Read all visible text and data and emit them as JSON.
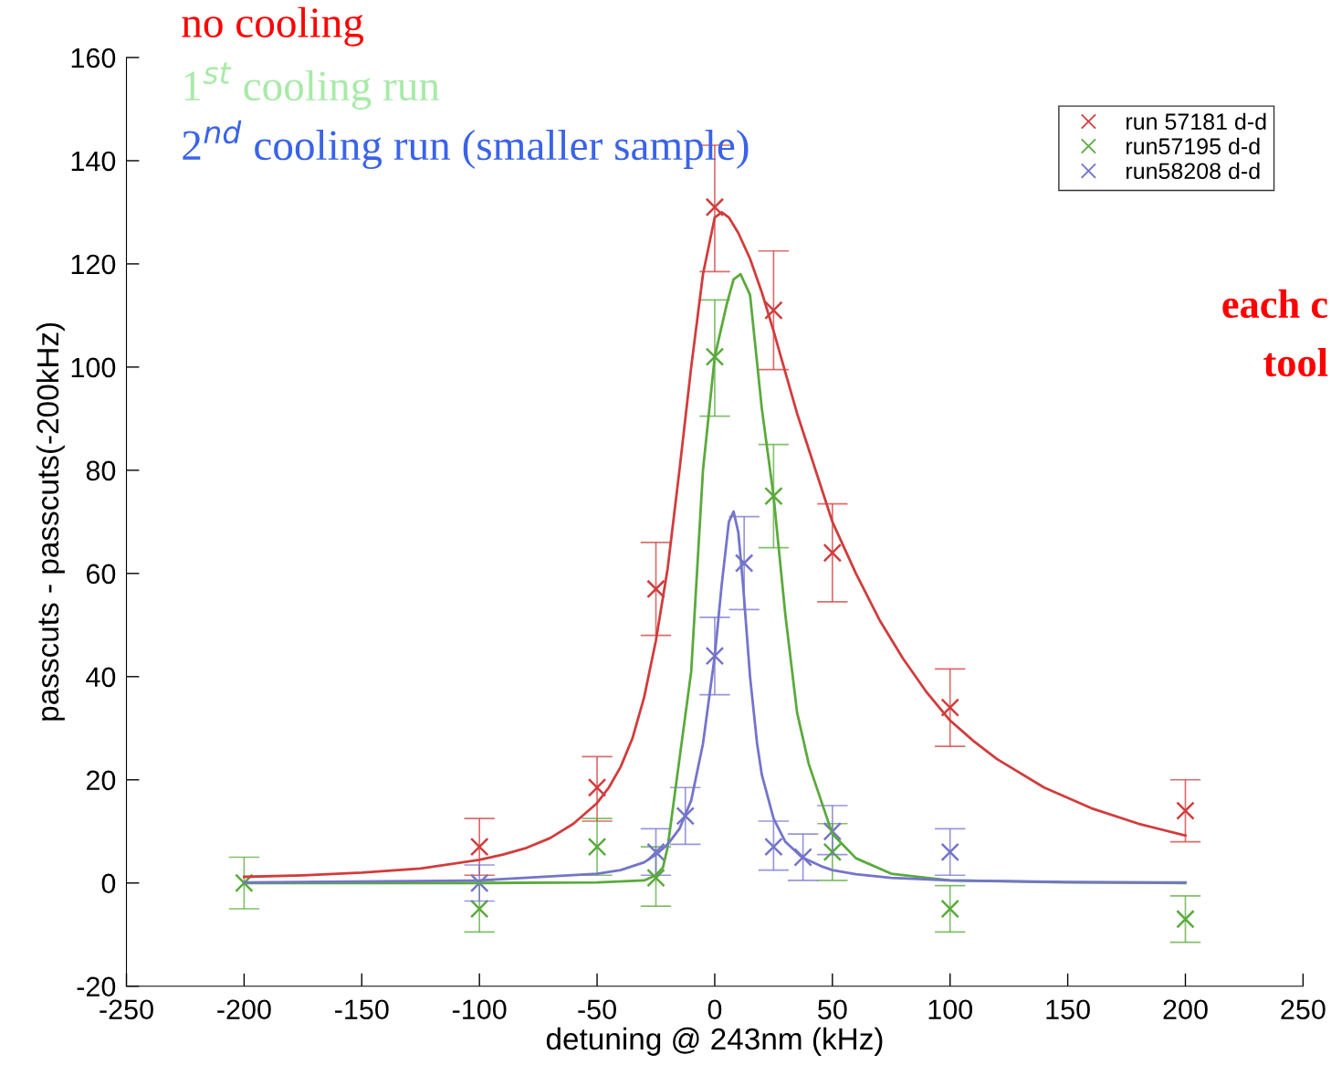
{
  "chart_data": {
    "type": "scatter",
    "xlabel": "detuning @ 243nm (kHz)",
    "ylabel": "passcuts - passcuts(-200kHz)",
    "xlim": [
      -250,
      250
    ],
    "xticks": [
      -250,
      -200,
      -150,
      -100,
      -50,
      0,
      50,
      100,
      150,
      200,
      250
    ],
    "ylim": [
      -20,
      160
    ],
    "yticks": [
      -20,
      0,
      20,
      40,
      60,
      80,
      100,
      120,
      140,
      160
    ],
    "grid": false,
    "legend": "top right",
    "marker": "cross",
    "annotations": [
      "no cooling",
      "1$^{st}$ cooling run",
      "2$^{nd}$ cooling run (smaller sample)",
      "each c",
      "tool"
    ],
    "series": [
      {
        "name": "run 57181 d-d",
        "color": "#d23c3c",
        "x": [
          -100,
          -50,
          -25,
          0,
          25,
          50,
          100,
          200
        ],
        "values": [
          7,
          18.5,
          57,
          131,
          111,
          64,
          34,
          14
        ],
        "errors": [
          [
            1.5,
            12.5
          ],
          [
            12,
            24.5
          ],
          [
            48,
            66
          ],
          [
            118.5,
            143
          ],
          [
            99.5,
            122.5
          ],
          [
            54.5,
            73.5
          ],
          [
            26.5,
            41.5
          ],
          [
            8,
            20
          ]
        ]
      },
      {
        "name": "run57195 d-d",
        "color": "#5aaa3c",
        "x": [
          -200,
          -100,
          -50,
          -25,
          0,
          25,
          50,
          100,
          200
        ],
        "values": [
          0,
          -5,
          7,
          1,
          102,
          75,
          6,
          -5,
          -7
        ],
        "errors": [
          [
            -5,
            5
          ],
          [
            -9.5,
            0.5
          ],
          [
            1.5,
            12.5
          ],
          [
            -4.5,
            7
          ],
          [
            90.5,
            113
          ],
          [
            65,
            85
          ],
          [
            0.5,
            11.5
          ],
          [
            -9.5,
            -0.5
          ],
          [
            -11.5,
            -2.5
          ]
        ]
      },
      {
        "name": "run58208 d-d",
        "color": "#7474cc",
        "x": [
          -100,
          -25,
          -12.5,
          0,
          12.5,
          25,
          37.5,
          50,
          100
        ],
        "values": [
          0,
          6,
          13,
          44,
          62,
          7,
          5,
          10,
          6
        ],
        "errors": [
          [
            -3.5,
            3.5
          ],
          [
            1.5,
            10.5
          ],
          [
            7.5,
            18.5
          ],
          [
            36.5,
            51.5
          ],
          [
            53,
            71
          ],
          [
            2.5,
            12
          ],
          [
            0.5,
            9.5
          ],
          [
            5.5,
            15
          ],
          [
            1.5,
            10.5
          ]
        ]
      },
      {
        "type": "line",
        "color": "#d23c3c",
        "marker": "none",
        "x": [
          -200,
          -175,
          -150,
          -125,
          -100,
          -90,
          -80,
          -70,
          -60,
          -50,
          -45,
          -40,
          -35,
          -30,
          -25,
          -20,
          -15,
          -10,
          -5,
          0,
          3,
          6,
          10,
          15,
          20,
          25,
          30,
          35,
          40,
          45,
          50,
          60,
          70,
          80,
          90,
          100,
          110,
          120,
          140,
          160,
          180,
          200
        ],
        "values": [
          1.2,
          1.5,
          2.0,
          2.8,
          4.5,
          5.5,
          6.8,
          8.7,
          11.5,
          15.5,
          18.5,
          22.5,
          28,
          36,
          47,
          61,
          80,
          100,
          118,
          129,
          130,
          129,
          126,
          121,
          114.5,
          107,
          99,
          91,
          84,
          77,
          70,
          60,
          51,
          43.5,
          37,
          31.5,
          27.5,
          24,
          18.5,
          14.5,
          11.5,
          9.2
        ]
      },
      {
        "type": "line",
        "color": "#5aaa3c",
        "marker": "none",
        "x": [
          -200,
          -100,
          -50,
          -30,
          -25,
          -22,
          -20,
          -15,
          -10,
          -5,
          0,
          5,
          8,
          11,
          15,
          20,
          25,
          30,
          35,
          40,
          50,
          60,
          75,
          100,
          150,
          200
        ],
        "values": [
          0,
          0,
          0.1,
          0.5,
          1.5,
          3,
          7,
          24,
          41,
          80,
          102,
          112,
          117,
          118,
          114,
          92,
          75,
          52,
          33,
          23,
          9.5,
          4.8,
          1.8,
          0.5,
          0.1,
          0
        ]
      },
      {
        "type": "line",
        "color": "#7474cc",
        "marker": "none",
        "x": [
          -200,
          -100,
          -50,
          -40,
          -30,
          -25,
          -20,
          -15,
          -10,
          -5,
          0,
          3,
          6,
          8,
          10,
          12,
          15,
          18,
          20,
          25,
          30,
          37,
          45,
          50,
          60,
          75,
          100,
          150,
          200
        ],
        "values": [
          0.1,
          0.5,
          1.8,
          2.5,
          4,
          5.5,
          7.5,
          10.5,
          16,
          27,
          44,
          58,
          70,
          72,
          68,
          58,
          40,
          27,
          21,
          12.5,
          8,
          5,
          3.3,
          2.5,
          1.7,
          1,
          0.5,
          0.2,
          0.1
        ]
      }
    ]
  }
}
